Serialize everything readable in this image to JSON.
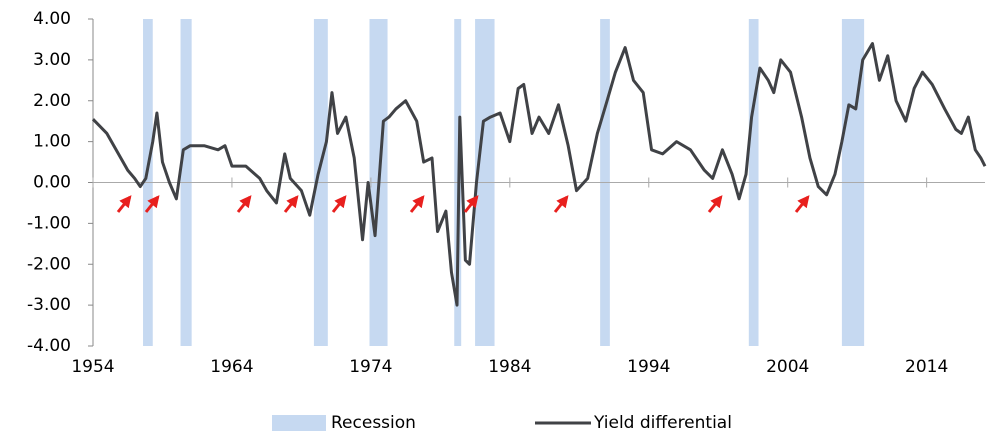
{
  "chart_data": {
    "type": "line",
    "x": [
      1954.0,
      1955.0,
      1956.0,
      1956.5,
      1957.0,
      1957.4,
      1957.8,
      1958.3,
      1958.6,
      1959.0,
      1959.5,
      1960.0,
      1960.5,
      1961.0,
      1962.0,
      1963.0,
      1963.5,
      1964.0,
      1965.0,
      1966.0,
      1966.5,
      1967.2,
      1967.8,
      1968.2,
      1969.0,
      1969.6,
      1970.2,
      1970.8,
      1971.2,
      1971.6,
      1972.2,
      1972.8,
      1973.4,
      1973.8,
      1974.3,
      1974.9,
      1975.3,
      1975.8,
      1976.5,
      1977.3,
      1977.8,
      1978.4,
      1978.8,
      1979.4,
      1979.8,
      1980.2,
      1980.4,
      1980.8,
      1981.1,
      1981.6,
      1982.1,
      1982.6,
      1983.3,
      1984.0,
      1984.6,
      1985.0,
      1985.6,
      1986.1,
      1986.8,
      1987.5,
      1988.2,
      1988.8,
      1989.6,
      1990.3,
      1991.0,
      1991.6,
      1992.3,
      1992.9,
      1993.6,
      1994.2,
      1995.0,
      1996.0,
      1997.0,
      1998.0,
      1998.6,
      1999.3,
      2000.0,
      2000.5,
      2001.0,
      2001.4,
      2002.0,
      2002.6,
      2003.0,
      2003.5,
      2004.2,
      2005.0,
      2005.6,
      2006.2,
      2006.8,
      2007.4,
      2007.9,
      2008.4,
      2008.9,
      2009.4,
      2010.1,
      2010.6,
      2011.2,
      2011.8,
      2012.5,
      2013.1,
      2013.7,
      2014.4,
      2015.3,
      2016.1,
      2016.5,
      2017.0,
      2017.5,
      2017.9,
      2018.2
    ],
    "series": [
      {
        "name": "Yield differential",
        "color": "#404246",
        "values": [
          1.55,
          1.2,
          0.6,
          0.3,
          0.1,
          -0.1,
          0.1,
          1.0,
          1.7,
          0.5,
          0.0,
          -0.4,
          0.8,
          0.9,
          0.9,
          0.8,
          0.9,
          0.4,
          0.4,
          0.1,
          -0.2,
          -0.5,
          0.7,
          0.1,
          -0.2,
          -0.8,
          0.2,
          1.0,
          2.2,
          1.2,
          1.6,
          0.6,
          -1.4,
          0.0,
          -1.3,
          1.5,
          1.6,
          1.8,
          2.0,
          1.5,
          0.5,
          0.6,
          -1.2,
          -0.7,
          -2.2,
          -3.0,
          1.6,
          -1.9,
          -2.0,
          0.0,
          1.5,
          1.6,
          1.7,
          1.0,
          2.3,
          2.4,
          1.2,
          1.6,
          1.2,
          1.9,
          0.9,
          -0.2,
          0.1,
          1.2,
          2.0,
          2.7,
          3.3,
          2.5,
          2.2,
          0.8,
          0.7,
          1.0,
          0.8,
          0.3,
          0.1,
          0.8,
          0.2,
          -0.4,
          0.2,
          1.6,
          2.8,
          2.5,
          2.2,
          3.0,
          2.7,
          1.6,
          0.6,
          -0.1,
          -0.3,
          0.2,
          1.0,
          1.9,
          1.8,
          3.0,
          3.4,
          2.5,
          3.1,
          2.0,
          1.5,
          2.3,
          2.7,
          2.4,
          1.8,
          1.3,
          1.2,
          1.6,
          0.8,
          0.6,
          0.4
        ]
      }
    ],
    "bands": {
      "name": "Recession",
      "color": "#c6d9f1",
      "ranges": [
        [
          1957.6,
          1958.3
        ],
        [
          1960.3,
          1961.1
        ],
        [
          1969.9,
          1970.9
        ],
        [
          1973.9,
          1975.2
        ],
        [
          1980.0,
          1980.5
        ],
        [
          1981.5,
          1982.9
        ],
        [
          1990.5,
          1991.2
        ],
        [
          2001.2,
          2001.9
        ],
        [
          2007.9,
          2009.5
        ]
      ]
    },
    "xlim": [
      1954,
      2018.2
    ],
    "xticks": [
      1954,
      1964,
      1974,
      1984,
      1994,
      2004,
      2014
    ],
    "ylim": [
      -4,
      4
    ],
    "yticks": [
      {
        "value": -4,
        "label": "-4.00"
      },
      {
        "value": -3,
        "label": "-3.00"
      },
      {
        "value": -2,
        "label": "-2.00"
      },
      {
        "value": -1,
        "label": "-1.00"
      },
      {
        "value": 0,
        "label": "0.00"
      },
      {
        "value": 1,
        "label": "1.00"
      },
      {
        "value": 2,
        "label": "2.00"
      },
      {
        "value": 3,
        "label": "3.00"
      },
      {
        "value": 4,
        "label": "4.00"
      }
    ],
    "legend": "bottom"
  }
}
